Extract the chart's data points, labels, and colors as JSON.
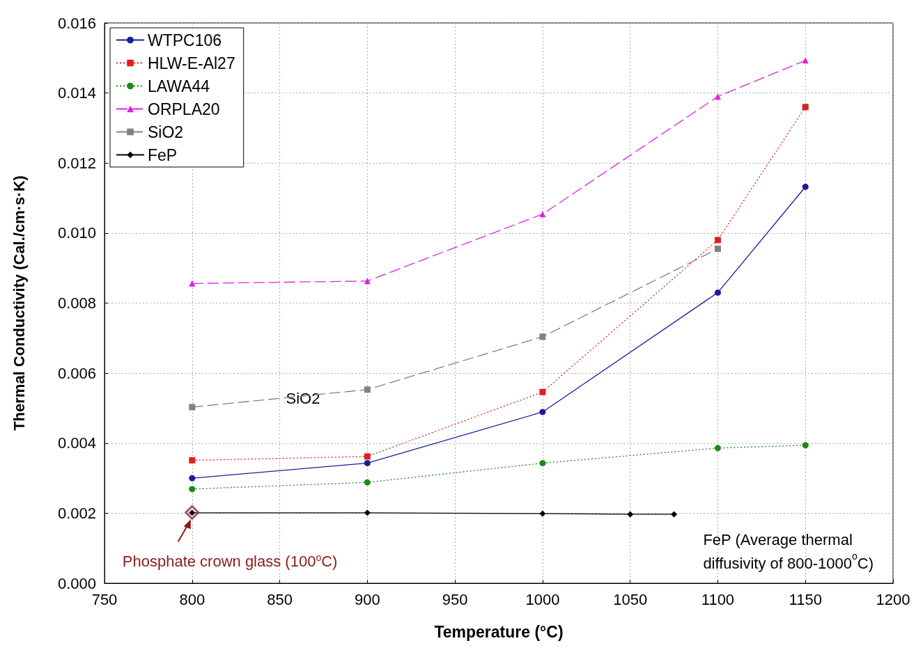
{
  "chart_data": {
    "type": "line",
    "xlabel": "Temperature (°C)",
    "ylabel": "Thermal Conductivity (Cal./cm·s·K)",
    "xlim": [
      750,
      1200
    ],
    "xticks": [
      750,
      800,
      850,
      900,
      950,
      1000,
      1050,
      1100,
      1150,
      1200
    ],
    "ylim": [
      0,
      0.016
    ],
    "yticks": [
      {
        "value": 0,
        "label": "0.000"
      },
      {
        "value": 0.002,
        "label": "0.002"
      },
      {
        "value": 0.004,
        "label": "0.004"
      },
      {
        "value": 0.006,
        "label": "0.006"
      },
      {
        "value": 0.008,
        "label": "0.008"
      },
      {
        "value": 0.01,
        "label": "0.010"
      },
      {
        "value": 0.012,
        "label": "0.012"
      },
      {
        "value": 0.014,
        "label": "0.014"
      },
      {
        "value": 0.016,
        "label": "0.016"
      }
    ],
    "grid": true,
    "legend": "top left",
    "series": [
      {
        "name": "WTPC106",
        "color": "#1c1c96",
        "marker": "circle",
        "line_style": "solid",
        "x": [
          800,
          900,
          1000,
          1100,
          1150
        ],
        "values": [
          0.003,
          0.00343,
          0.00489,
          0.0083,
          0.01132
        ]
      },
      {
        "name": "HLW-E-Al27",
        "color": "#e02020",
        "marker": "square",
        "line_style": "dotted",
        "x": [
          800,
          900,
          1000,
          1100,
          1150
        ],
        "values": [
          0.00351,
          0.00362,
          0.00546,
          0.0098,
          0.0136
        ]
      },
      {
        "name": "LAWA44",
        "color": "#1a8a1a",
        "marker": "circle",
        "line_style": "dotted",
        "x": [
          800,
          900,
          1000,
          1100,
          1150
        ],
        "values": [
          0.00269,
          0.00288,
          0.00343,
          0.00386,
          0.00394
        ]
      },
      {
        "name": "ORPLA20",
        "color": "#e020e0",
        "marker": "triangle",
        "line_style": "dashed",
        "x": [
          800,
          900,
          1000,
          1100,
          1150
        ],
        "values": [
          0.00856,
          0.00863,
          0.01054,
          0.0139,
          0.01493
        ]
      },
      {
        "name": "SiO2",
        "color": "#808080",
        "marker": "square",
        "line_style": "dashed",
        "x": [
          800,
          900,
          1000,
          1100
        ],
        "values": [
          0.00503,
          0.00553,
          0.00704,
          0.00955
        ]
      },
      {
        "name": "FeP",
        "color": "#000000",
        "marker": "diamond",
        "line_style": "solid",
        "x": [
          800,
          900,
          1000,
          1050,
          1075
        ],
        "values": [
          0.00201,
          0.00201,
          0.00199,
          0.00197,
          0.00197
        ]
      },
      {
        "type": "scatter",
        "color": "#9a3030",
        "marker": "diamond",
        "x": [
          800
        ],
        "values": [
          0.00202
        ]
      }
    ],
    "annotations": [
      {
        "text": "SiO2",
        "x": 850,
        "y": 0.0053
      },
      {
        "text": "Phosphate crown glass (100$^{o}$C)",
        "x": 800,
        "y": 0.00202
      },
      "FeP (Average thermal\ndiffusivity of 800-1000$^{o}$C)"
    ]
  }
}
